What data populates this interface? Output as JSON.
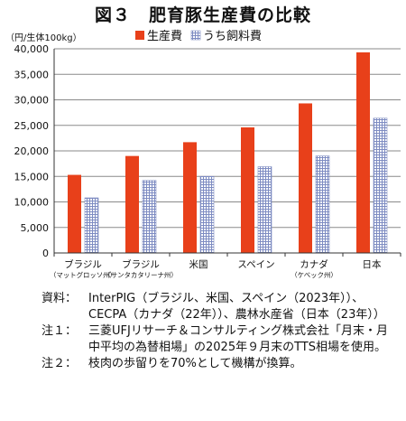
{
  "title": "図３　肥育豚生産費の比較",
  "chart_data": {
    "type": "bar",
    "unit_label": "（円/生体100kg）",
    "categories": [
      {
        "line1": "ブラジル",
        "line2": "（マットグロッソ州）"
      },
      {
        "line1": "ブラジル",
        "line2": "（サンタカタリーナ州）"
      },
      {
        "line1": "米国",
        "line2": ""
      },
      {
        "line1": "スペイン",
        "line2": ""
      },
      {
        "line1": "カナダ",
        "line2": "（ケベック州）"
      },
      {
        "line1": "日本",
        "line2": ""
      }
    ],
    "series": [
      {
        "name": "生産費",
        "color": "#e8401a",
        "values": [
          15300,
          19000,
          21700,
          24600,
          29300,
          39300
        ]
      },
      {
        "name": "うち飼料費",
        "color": "#aab4d6",
        "pattern": "grid",
        "values": [
          10800,
          14200,
          15000,
          16900,
          19000,
          26400
        ]
      }
    ],
    "ylim": [
      0,
      40000
    ],
    "ytick_step": 5000,
    "ytick_labels": [
      "0",
      "5,000",
      "10,000",
      "15,000",
      "20,000",
      "25,000",
      "30,000",
      "35,000",
      "40,000"
    ],
    "legend_position": "top",
    "grid": true
  },
  "notes": [
    {
      "label": "資料：",
      "text": "InterPIG（ブラジル、米国、スペイン（2023年））、CECPA（カナダ（22年））、農林水産省（日本（23年））"
    },
    {
      "label": "注１：",
      "text": "三菱UFJリサーチ＆コンサルティング株式会社「月末・月中平均の為替相場」の2025年９月末のTTS相場を使用。"
    },
    {
      "label": "注２：",
      "text": "枝肉の歩留りを70%として機構が換算。"
    }
  ]
}
